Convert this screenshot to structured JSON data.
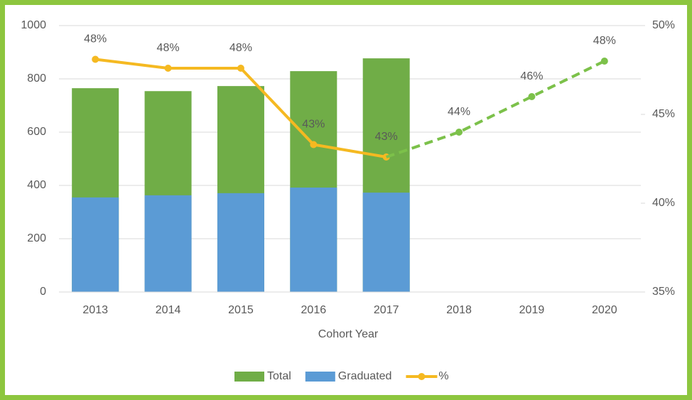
{
  "chart_data": {
    "type": "bar",
    "x_label": "Cohort Year",
    "categories": [
      "2013",
      "2014",
      "2015",
      "2016",
      "2017",
      "2018",
      "2019",
      "2020"
    ],
    "series": [
      {
        "name": "Total",
        "type": "bar",
        "color": "#70ad47",
        "values": [
          765,
          754,
          773,
          829,
          877,
          null,
          null,
          null
        ]
      },
      {
        "name": "Graduated",
        "type": "bar",
        "color": "#5b9bd5",
        "values": [
          355,
          363,
          371,
          392,
          373,
          null,
          null,
          null
        ]
      },
      {
        "name": "%",
        "type": "line",
        "axis": "y2",
        "color": "#f5b921",
        "values": [
          48.1,
          47.6,
          47.6,
          43.3,
          42.6,
          null,
          null,
          null
        ],
        "value_labels": [
          "48%",
          "48%",
          "48%",
          "43%",
          "43%",
          null,
          null,
          null
        ]
      },
      {
        "type": "line",
        "axis": "y2",
        "color": "#7cc14a",
        "dashed": true,
        "values": [
          null,
          null,
          null,
          null,
          42.6,
          44,
          46,
          48
        ],
        "value_labels": [
          null,
          null,
          null,
          null,
          null,
          "44%",
          "46%",
          "48%"
        ]
      }
    ],
    "ylim": [
      0,
      1000
    ],
    "yticks": [
      0,
      200,
      400,
      600,
      800,
      1000
    ],
    "y2lim": [
      35,
      50
    ],
    "y2ticks": [
      {
        "value": 35,
        "label": "35%"
      },
      {
        "value": 40,
        "label": "40%"
      },
      {
        "value": 45,
        "label": "45%"
      },
      {
        "value": 50,
        "label": "50%"
      }
    ],
    "grid": true,
    "legend": "bottom"
  }
}
